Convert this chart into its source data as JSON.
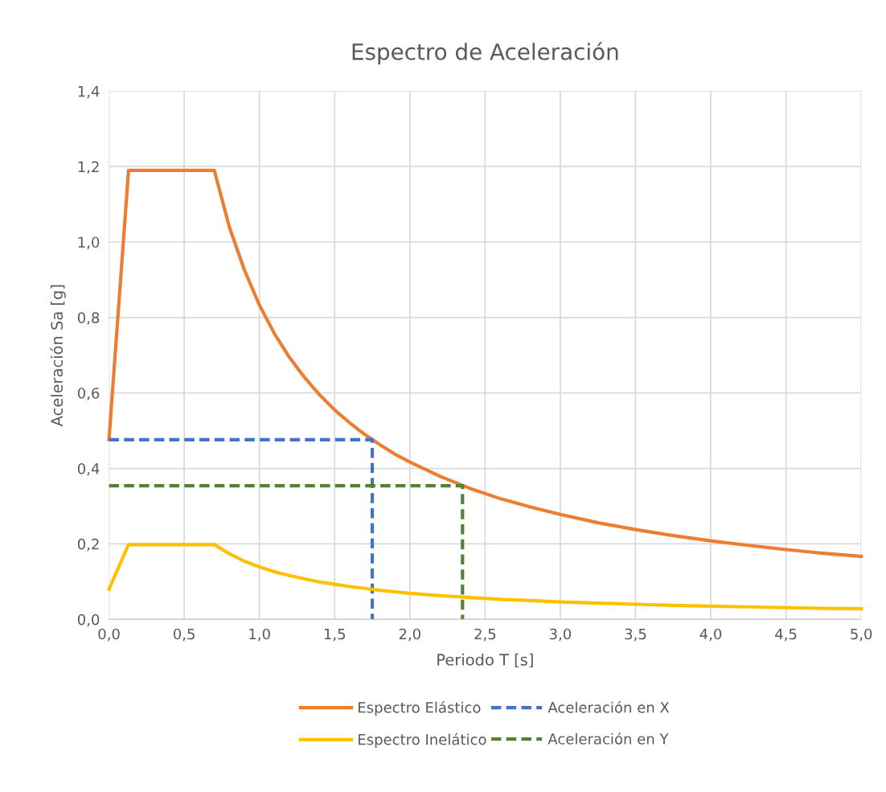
{
  "chart_data": {
    "type": "line",
    "title": "Espectro de Aceleración",
    "xlabel": "Periodo T [s]",
    "ylabel": "Aceleración Sa [g]",
    "xlim": [
      0,
      5
    ],
    "ylim": [
      0,
      1.4
    ],
    "xticks": [
      {
        "value": 0,
        "label": "0,0"
      },
      {
        "value": 0.5,
        "label": "0,5"
      },
      {
        "value": 1,
        "label": "1,0"
      },
      {
        "value": 1.5,
        "label": "1,5"
      },
      {
        "value": 2,
        "label": "2,0"
      },
      {
        "value": 2.5,
        "label": "2,5"
      },
      {
        "value": 3,
        "label": "3,0"
      },
      {
        "value": 3.5,
        "label": "3,5"
      },
      {
        "value": 4,
        "label": "4,0"
      },
      {
        "value": 4.5,
        "label": "4,5"
      },
      {
        "value": 5,
        "label": "5,0"
      }
    ],
    "yticks": [
      {
        "value": 0,
        "label": "0,0"
      },
      {
        "value": 0.2,
        "label": "0,2"
      },
      {
        "value": 0.4,
        "label": "0,4"
      },
      {
        "value": 0.6,
        "label": "0,6"
      },
      {
        "value": 0.8,
        "label": "0,8"
      },
      {
        "value": 1.0,
        "label": "1,0"
      },
      {
        "value": 1.2,
        "label": "1,2"
      },
      {
        "value": 1.4,
        "label": "1,4"
      }
    ],
    "grid": true,
    "legend": "bottom",
    "marker": "none",
    "series": [
      {
        "name": "Espectro Elástico",
        "color": "#ed7d31",
        "line_style": "solid",
        "x": [
          0,
          0.13,
          0.7,
          0.8,
          0.9,
          1.0,
          1.1,
          1.2,
          1.3,
          1.4,
          1.5,
          1.6,
          1.7,
          1.8,
          1.9,
          2.0,
          2.2,
          2.4,
          2.6,
          2.8,
          3.0,
          3.25,
          3.5,
          3.75,
          4.0,
          4.25,
          4.5,
          4.75,
          5.0
        ],
        "values": [
          0.476,
          1.19,
          1.19,
          1.04,
          0.926,
          0.833,
          0.757,
          0.694,
          0.641,
          0.595,
          0.555,
          0.521,
          0.49,
          0.463,
          0.438,
          0.417,
          0.379,
          0.347,
          0.32,
          0.298,
          0.278,
          0.256,
          0.238,
          0.222,
          0.208,
          0.196,
          0.185,
          0.175,
          0.167
        ]
      },
      {
        "name": "Aceleración en X",
        "color": "#4472c4",
        "line_style": "dashed",
        "x": [
          0,
          1.75,
          1.75
        ],
        "values": [
          0.476,
          0.476,
          0
        ]
      },
      {
        "name": "Espectro Inelático",
        "color": "#ffc000",
        "line_style": "solid",
        "x": [
          0,
          0.13,
          0.7,
          0.8,
          0.9,
          1.0,
          1.1,
          1.2,
          1.3,
          1.4,
          1.5,
          1.6,
          1.7,
          1.8,
          1.9,
          2.0,
          2.2,
          2.4,
          2.6,
          2.8,
          3.0,
          3.25,
          3.5,
          3.75,
          4.0,
          4.25,
          4.5,
          4.75,
          5.0
        ],
        "values": [
          0.08,
          0.198,
          0.198,
          0.174,
          0.154,
          0.139,
          0.126,
          0.116,
          0.107,
          0.099,
          0.093,
          0.087,
          0.082,
          0.077,
          0.073,
          0.069,
          0.063,
          0.058,
          0.053,
          0.05,
          0.046,
          0.043,
          0.04,
          0.037,
          0.035,
          0.033,
          0.031,
          0.029,
          0.028
        ]
      },
      {
        "name": "Aceleración en Y",
        "color": "#548235",
        "line_style": "dashed",
        "x": [
          0,
          2.35,
          2.35
        ],
        "values": [
          0.354,
          0.354,
          0
        ]
      }
    ]
  }
}
